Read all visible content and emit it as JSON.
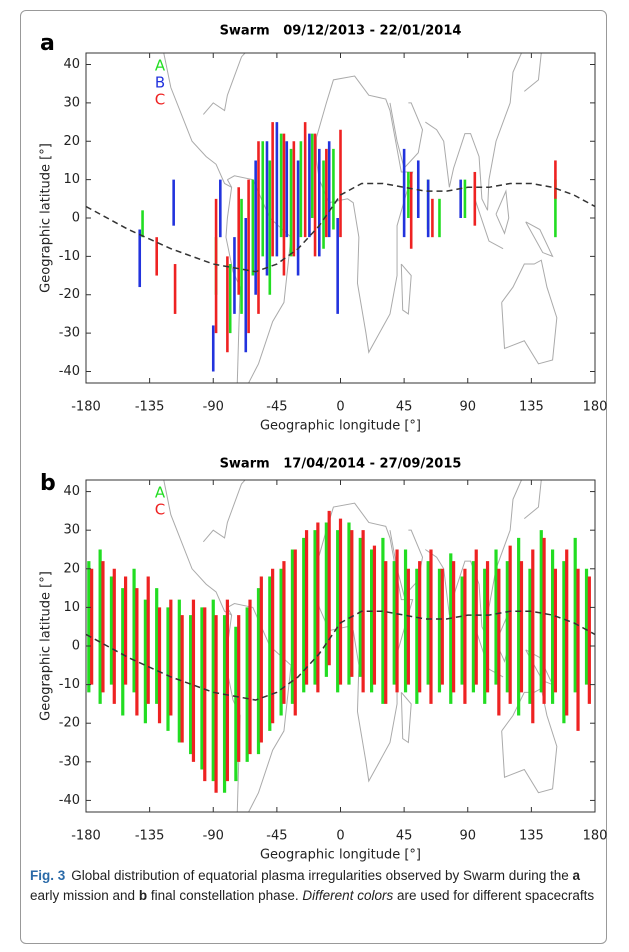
{
  "chart_data": [
    {
      "type": "vertical-segment",
      "panel_label": "a",
      "title": "Swarm   09/12/2013 - 22/01/2014",
      "xlabel": "Geographic longitude [°]",
      "ylabel": "Geographic latitude [°]",
      "xlim": [
        -180,
        180
      ],
      "xticks": [
        -180,
        -135,
        -90,
        -45,
        0,
        45,
        90,
        135,
        180
      ],
      "ylim": [
        -43,
        43
      ],
      "yticks": [
        -40,
        -30,
        -20,
        -10,
        0,
        10,
        20,
        30,
        40
      ],
      "series": [
        {
          "name": "A",
          "color": "#22dd22",
          "x": [
            -140,
            -88,
            -78,
            -70,
            -62,
            -55,
            -50,
            -42,
            -35,
            -28,
            -20,
            -12,
            -5,
            48,
            62,
            70,
            88,
            152
          ],
          "low": [
            -5,
            -20,
            -30,
            -25,
            -15,
            -10,
            -20,
            -5,
            -10,
            -5,
            0,
            -8,
            -3,
            0,
            -3,
            -5,
            0,
            -5
          ],
          "high": [
            2,
            -5,
            -12,
            5,
            10,
            20,
            15,
            22,
            18,
            20,
            22,
            15,
            18,
            12,
            10,
            5,
            10,
            10
          ]
        },
        {
          "name": "B",
          "color": "#2233dd",
          "x": [
            -142,
            -118,
            -90,
            -85,
            -75,
            -67,
            -60,
            -52,
            -45,
            -38,
            -30,
            -22,
            -15,
            -8,
            -2,
            45,
            55,
            62,
            85
          ],
          "low": [
            -18,
            -2,
            -40,
            -5,
            -25,
            -35,
            -20,
            -15,
            -10,
            -5,
            -15,
            -5,
            -10,
            -5,
            -25,
            -5,
            0,
            -5,
            0
          ],
          "high": [
            -3,
            10,
            -28,
            10,
            -5,
            0,
            15,
            20,
            25,
            20,
            15,
            22,
            18,
            20,
            0,
            18,
            15,
            10,
            10
          ]
        },
        {
          "name": "C",
          "color": "#ee2222",
          "x": [
            -130,
            -117,
            -88,
            -80,
            -72,
            -65,
            -58,
            -48,
            -40,
            -33,
            -25,
            -18,
            -10,
            0,
            50,
            65,
            95,
            152
          ],
          "low": [
            -15,
            -25,
            -30,
            -35,
            -20,
            -30,
            -25,
            -10,
            -15,
            -10,
            -5,
            -10,
            -5,
            -5,
            -8,
            -5,
            -2,
            5
          ],
          "high": [
            -5,
            -12,
            5,
            -10,
            8,
            10,
            20,
            25,
            22,
            20,
            25,
            22,
            18,
            23,
            12,
            5,
            12,
            15
          ]
        }
      ],
      "equator": {
        "color": "#333333",
        "dashed": true,
        "x": [
          -180,
          -150,
          -120,
          -90,
          -60,
          -45,
          -30,
          -15,
          0,
          15,
          30,
          45,
          60,
          75,
          90,
          105,
          120,
          135,
          150,
          165,
          180
        ],
        "y": [
          3,
          -3,
          -8,
          -12,
          -14,
          -12,
          -8,
          -2,
          6,
          9,
          9,
          8,
          7,
          7,
          8,
          8,
          9,
          9,
          8,
          6,
          3
        ]
      }
    },
    {
      "type": "vertical-segment",
      "panel_label": "b",
      "title": "Swarm   17/04/2014 - 27/09/2015",
      "xlabel": "Geographic longitude [°]",
      "ylabel": "Geographic latitude [°]",
      "xlim": [
        -180,
        180
      ],
      "xticks": [
        -180,
        -135,
        -90,
        -45,
        0,
        45,
        90,
        135,
        180
      ],
      "ylim": [
        -43,
        43
      ],
      "yticks": [
        -40,
        -30,
        -20,
        -10,
        0,
        10,
        20,
        30,
        40
      ],
      "series": [
        {
          "name": "A",
          "color": "#22dd22",
          "x": [
            -178,
            -170,
            -162,
            -154,
            -146,
            -138,
            -130,
            -122,
            -114,
            -106,
            -98,
            -90,
            -82,
            -74,
            -66,
            -58,
            -50,
            -42,
            -34,
            -26,
            -18,
            -10,
            -2,
            6,
            14,
            22,
            30,
            38,
            46,
            54,
            62,
            70,
            78,
            86,
            94,
            102,
            110,
            118,
            126,
            134,
            142,
            150,
            158,
            166,
            174
          ],
          "low": [
            -12,
            -15,
            -10,
            -18,
            -12,
            -20,
            -15,
            -22,
            -25,
            -28,
            -32,
            -35,
            -38,
            -35,
            -30,
            -28,
            -22,
            -18,
            -15,
            -12,
            -10,
            -8,
            -12,
            -10,
            -8,
            -12,
            -15,
            -10,
            -12,
            -15,
            -10,
            -12,
            -15,
            -10,
            -12,
            -15,
            -10,
            -12,
            -18,
            -15,
            -12,
            -15,
            -20,
            -12,
            -10
          ],
          "high": [
            22,
            25,
            18,
            15,
            20,
            12,
            15,
            10,
            12,
            8,
            10,
            12,
            8,
            5,
            10,
            15,
            18,
            20,
            25,
            28,
            30,
            32,
            30,
            32,
            28,
            25,
            28,
            22,
            25,
            20,
            22,
            20,
            24,
            18,
            22,
            20,
            25,
            22,
            28,
            20,
            30,
            25,
            22,
            28,
            20
          ]
        },
        {
          "name": "C",
          "color": "#ee2222",
          "x": [
            -176,
            -168,
            -160,
            -152,
            -144,
            -136,
            -128,
            -120,
            -112,
            -104,
            -96,
            -88,
            -80,
            -72,
            -64,
            -56,
            -48,
            -40,
            -32,
            -24,
            -16,
            -8,
            0,
            8,
            16,
            24,
            32,
            40,
            48,
            56,
            64,
            72,
            80,
            88,
            96,
            104,
            112,
            120,
            128,
            136,
            144,
            152,
            160,
            168,
            176
          ],
          "low": [
            -10,
            -12,
            -15,
            -10,
            -18,
            -15,
            -20,
            -18,
            -25,
            -30,
            -35,
            -38,
            -35,
            -30,
            -28,
            -25,
            -20,
            -15,
            -18,
            -10,
            -12,
            -5,
            -10,
            -8,
            -12,
            -10,
            -15,
            -12,
            -10,
            -12,
            -15,
            -10,
            -12,
            -15,
            -10,
            -12,
            -18,
            -15,
            -12,
            -20,
            -15,
            -12,
            -18,
            -22,
            -15
          ],
          "high": [
            20,
            22,
            20,
            18,
            15,
            18,
            10,
            12,
            8,
            12,
            10,
            8,
            12,
            8,
            12,
            18,
            20,
            22,
            25,
            30,
            32,
            35,
            33,
            30,
            30,
            26,
            22,
            25,
            20,
            22,
            25,
            20,
            22,
            20,
            25,
            22,
            20,
            26,
            22,
            25,
            28,
            20,
            25,
            20,
            18
          ]
        }
      ],
      "equator": {
        "color": "#333333",
        "dashed": true,
        "x": [
          -180,
          -150,
          -120,
          -90,
          -60,
          -45,
          -30,
          -15,
          0,
          15,
          30,
          45,
          60,
          75,
          90,
          105,
          120,
          135,
          150,
          165,
          180
        ],
        "y": [
          3,
          -3,
          -8,
          -12,
          -14,
          -12,
          -8,
          -2,
          6,
          9,
          9,
          8,
          7,
          7,
          8,
          8,
          9,
          9,
          8,
          6,
          3
        ]
      }
    }
  ],
  "caption": {
    "label": "Fig. 3",
    "segments": [
      {
        "text": "Global distribution of equatorial plasma irregularities observed by Swarm during the ",
        "style": "normal"
      },
      {
        "text": "a",
        "style": "bold"
      },
      {
        "text": " early mission and ",
        "style": "normal"
      },
      {
        "text": "b",
        "style": "bold"
      },
      {
        "text": " final constellation phase. ",
        "style": "normal"
      },
      {
        "text": "Different colors",
        "style": "italic"
      },
      {
        "text": " are used for different spacecrafts",
        "style": "normal"
      }
    ]
  }
}
